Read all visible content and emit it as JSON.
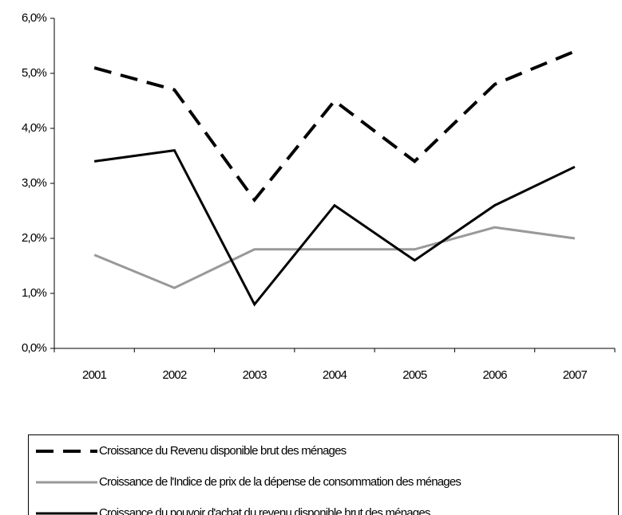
{
  "chart_data": {
    "type": "line",
    "categories": [
      "2001",
      "2002",
      "2003",
      "2004",
      "2005",
      "2006",
      "2007"
    ],
    "series": [
      {
        "name": "Croissance du Revenu disponible brut des ménages",
        "color": "#000000",
        "style": "dashed",
        "values": [
          5.1,
          4.7,
          2.7,
          4.5,
          3.4,
          4.8,
          5.4
        ]
      },
      {
        "name": "Croissance de l'Indice de prix de la dépense de consommation des ménages",
        "color": "#999999",
        "style": "solid",
        "values": [
          1.7,
          1.1,
          1.8,
          1.8,
          1.8,
          2.2,
          2.0
        ]
      },
      {
        "name": "Croissance du pouvoir d'achat du revenu disponible brut des ménages",
        "color": "#000000",
        "style": "solid",
        "values": [
          3.4,
          3.6,
          0.8,
          2.6,
          1.6,
          2.6,
          3.3
        ]
      }
    ],
    "ylim": [
      0,
      6
    ],
    "yticks": [
      {
        "value": 0,
        "label": "0,0%"
      },
      {
        "value": 1,
        "label": "1,0%"
      },
      {
        "value": 2,
        "label": "2,0%"
      },
      {
        "value": 3,
        "label": "3,0%"
      },
      {
        "value": 4,
        "label": "4,0%"
      },
      {
        "value": 5,
        "label": "5,0%"
      },
      {
        "value": 6,
        "label": "6,0%"
      }
    ],
    "grid": false,
    "legend": "bottom"
  }
}
